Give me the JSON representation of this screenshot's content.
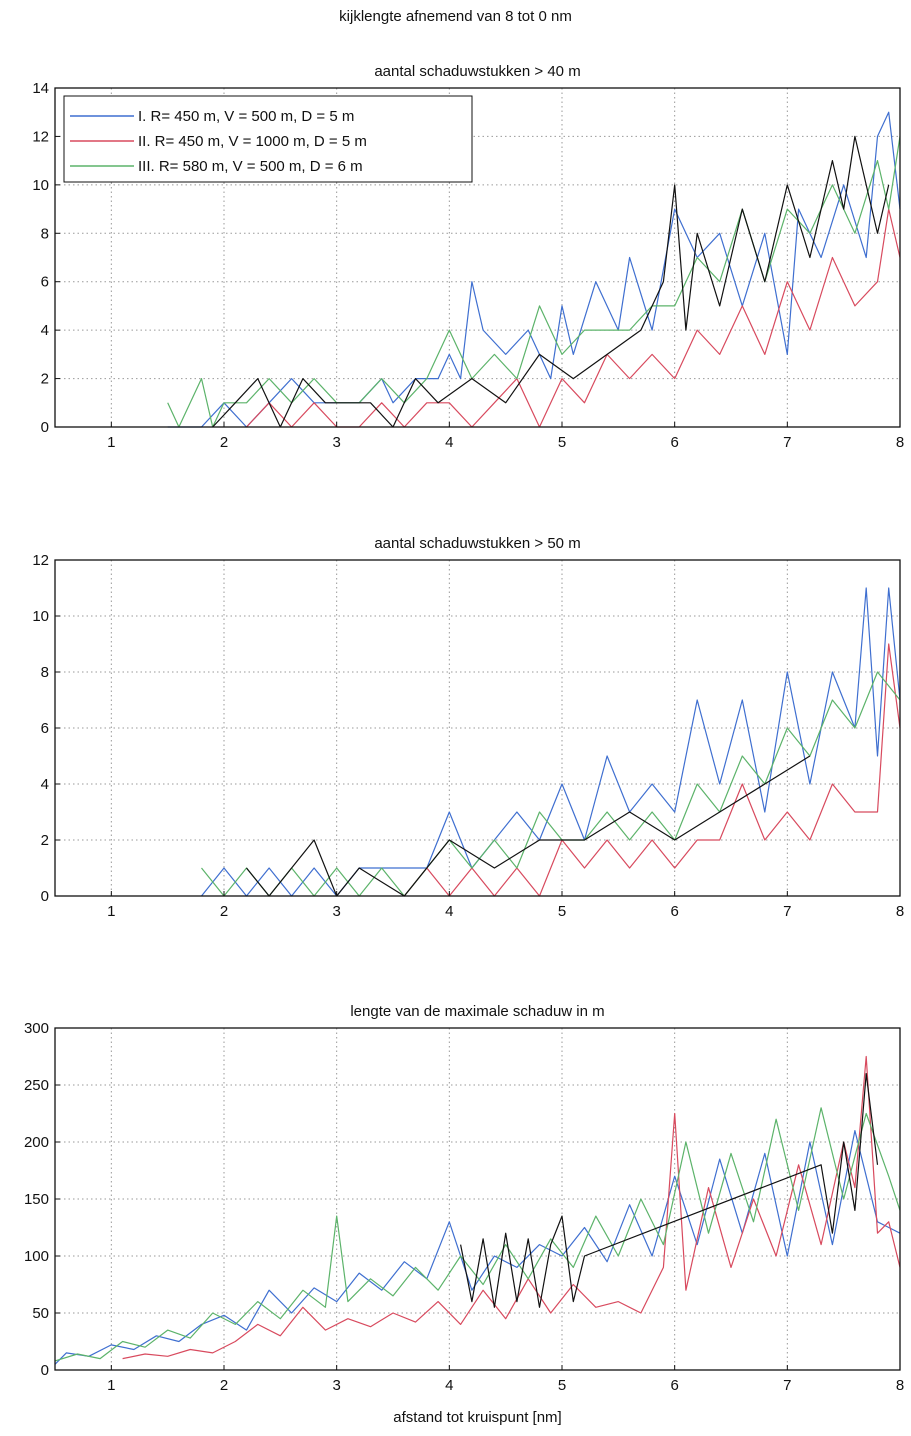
{
  "page_title": "kijklengte afnemend van 8 tot 0 nm",
  "legend": [
    {
      "label": "I.  R= 450 m, V = 500  m, D = 5 m",
      "color": "#3f6fd0"
    },
    {
      "label": "II.  R= 450 m, V = 1000  m, D = 5 m",
      "color": "#d84a5e"
    },
    {
      "label": "III. R= 580 m, V = 500 m, D = 6 m",
      "color": "#5cb36a"
    }
  ],
  "chart_data": [
    {
      "type": "line",
      "title": "aantal schaduwstukken > 40 m",
      "xlabel": "",
      "ylabel": "",
      "xlim": [
        0.5,
        8
      ],
      "ylim": [
        0,
        14
      ],
      "xticks": [
        1,
        2,
        3,
        4,
        5,
        6,
        7,
        8
      ],
      "yticks": [
        0,
        2,
        4,
        6,
        8,
        10,
        12,
        14
      ],
      "grid": true,
      "legend_position": "top-left",
      "series": [
        {
          "color": "#3f6fd0",
          "x": [
            1.5,
            1.8,
            2.0,
            2.2,
            2.4,
            2.6,
            2.8,
            3.0,
            3.2,
            3.4,
            3.5,
            3.7,
            3.9,
            4.0,
            4.1,
            4.2,
            4.3,
            4.5,
            4.7,
            4.9,
            5.0,
            5.1,
            5.3,
            5.5,
            5.6,
            5.8,
            6.0,
            6.2,
            6.4,
            6.6,
            6.8,
            7.0,
            7.1,
            7.3,
            7.5,
            7.7,
            7.8,
            7.9,
            8.0
          ],
          "y": [
            0,
            0,
            1,
            0,
            1,
            2,
            1,
            1,
            1,
            2,
            1,
            2,
            2,
            3,
            2,
            6,
            4,
            3,
            4,
            2,
            5,
            3,
            6,
            4,
            7,
            4,
            9,
            7,
            8,
            5,
            8,
            3,
            9,
            7,
            10,
            7,
            12,
            13,
            9
          ]
        },
        {
          "color": "#d84a5e",
          "x": [
            2.2,
            2.4,
            2.6,
            2.8,
            3.0,
            3.2,
            3.4,
            3.6,
            3.8,
            4.0,
            4.2,
            4.4,
            4.6,
            4.8,
            5.0,
            5.2,
            5.4,
            5.6,
            5.8,
            6.0,
            6.2,
            6.4,
            6.6,
            6.8,
            7.0,
            7.2,
            7.4,
            7.6,
            7.8,
            7.9,
            8.0
          ],
          "y": [
            0,
            1,
            0,
            1,
            0,
            0,
            1,
            0,
            1,
            1,
            0,
            1,
            2,
            0,
            2,
            1,
            3,
            2,
            3,
            2,
            4,
            3,
            5,
            3,
            6,
            4,
            7,
            5,
            6,
            9,
            7
          ]
        },
        {
          "color": "#5cb36a",
          "x": [
            1.5,
            1.6,
            1.8,
            1.9,
            2.0,
            2.2,
            2.4,
            2.6,
            2.8,
            3.0,
            3.2,
            3.4,
            3.6,
            3.8,
            4.0,
            4.2,
            4.4,
            4.6,
            4.8,
            5.0,
            5.2,
            5.4,
            5.6,
            5.8,
            6.0,
            6.2,
            6.4,
            6.6,
            6.8,
            7.0,
            7.2,
            7.4,
            7.6,
            7.8,
            7.9,
            8.0
          ],
          "y": [
            1,
            0,
            2,
            0,
            1,
            1,
            2,
            1,
            2,
            1,
            1,
            2,
            1,
            2,
            4,
            2,
            3,
            2,
            5,
            3,
            4,
            4,
            4,
            5,
            5,
            7,
            6,
            9,
            6,
            9,
            8,
            10,
            8,
            11,
            9,
            12
          ]
        },
        {
          "color": "#111111",
          "x": [
            1.9,
            2.1,
            2.3,
            2.5,
            2.7,
            2.9,
            3.1,
            3.3,
            3.5,
            3.7,
            3.9,
            4.2,
            4.5,
            4.8,
            5.1,
            5.4,
            5.7,
            5.9,
            6.0,
            6.1,
            6.2,
            6.4,
            6.6,
            6.8,
            7.0,
            7.2,
            7.4,
            7.5,
            7.6,
            7.8,
            7.9
          ],
          "y": [
            0,
            1,
            2,
            0,
            2,
            1,
            1,
            1,
            0,
            2,
            1,
            2,
            1,
            3,
            2,
            3,
            4,
            6,
            10,
            4,
            8,
            5,
            9,
            6,
            10,
            7,
            11,
            9,
            12,
            8,
            10
          ]
        }
      ]
    },
    {
      "type": "line",
      "title": "aantal schaduwstukken > 50 m",
      "xlabel": "",
      "ylabel": "",
      "xlim": [
        0.5,
        8
      ],
      "ylim": [
        0,
        12
      ],
      "xticks": [
        1,
        2,
        3,
        4,
        5,
        6,
        7,
        8
      ],
      "yticks": [
        0,
        2,
        4,
        6,
        8,
        10,
        12
      ],
      "grid": true,
      "series": [
        {
          "color": "#3f6fd0",
          "x": [
            1.8,
            2.0,
            2.2,
            2.4,
            2.6,
            2.8,
            3.0,
            3.2,
            3.4,
            3.6,
            3.8,
            4.0,
            4.2,
            4.4,
            4.6,
            4.8,
            5.0,
            5.2,
            5.4,
            5.6,
            5.8,
            6.0,
            6.2,
            6.4,
            6.6,
            6.8,
            7.0,
            7.2,
            7.4,
            7.6,
            7.7,
            7.8,
            7.9,
            8.0
          ],
          "y": [
            0,
            1,
            0,
            1,
            0,
            1,
            0,
            1,
            1,
            1,
            1,
            3,
            1,
            2,
            3,
            2,
            4,
            2,
            5,
            3,
            4,
            3,
            7,
            4,
            7,
            3,
            8,
            4,
            8,
            6,
            11,
            5,
            11,
            7
          ]
        },
        {
          "color": "#d84a5e",
          "x": [
            3.6,
            3.8,
            4.0,
            4.2,
            4.4,
            4.6,
            4.8,
            5.0,
            5.2,
            5.4,
            5.6,
            5.8,
            6.0,
            6.2,
            6.4,
            6.6,
            6.8,
            7.0,
            7.2,
            7.4,
            7.6,
            7.8,
            7.9,
            8.0
          ],
          "y": [
            0,
            1,
            0,
            1,
            0,
            1,
            0,
            2,
            1,
            2,
            1,
            2,
            1,
            2,
            2,
            4,
            2,
            3,
            2,
            4,
            3,
            3,
            9,
            6
          ]
        },
        {
          "color": "#5cb36a",
          "x": [
            1.8,
            2.0,
            2.2,
            2.4,
            2.6,
            2.8,
            3.0,
            3.2,
            3.4,
            3.6,
            3.8,
            4.0,
            4.2,
            4.4,
            4.6,
            4.8,
            5.0,
            5.2,
            5.4,
            5.6,
            5.8,
            6.0,
            6.2,
            6.4,
            6.6,
            6.8,
            7.0,
            7.2,
            7.4,
            7.6,
            7.8,
            8.0
          ],
          "y": [
            1,
            0,
            1,
            0,
            1,
            0,
            1,
            0,
            1,
            0,
            1,
            2,
            1,
            2,
            1,
            3,
            2,
            2,
            3,
            2,
            3,
            2,
            4,
            3,
            5,
            4,
            6,
            5,
            7,
            6,
            8,
            7
          ]
        },
        {
          "color": "#111111",
          "x": [
            2.2,
            2.4,
            2.6,
            2.8,
            3.0,
            3.2,
            3.6,
            4.0,
            4.4,
            4.8,
            5.2,
            5.6,
            6.0,
            6.4,
            6.8,
            7.2
          ],
          "y": [
            1,
            0,
            1,
            2,
            0,
            1,
            0,
            2,
            1,
            2,
            2,
            3,
            2,
            3,
            4,
            5
          ]
        }
      ]
    },
    {
      "type": "line",
      "title": "lengte van de maximale schaduw in m",
      "xlabel": "afstand tot kruispunt [nm]",
      "ylabel": "",
      "xlim": [
        0.5,
        8
      ],
      "ylim": [
        0,
        300
      ],
      "xticks": [
        1,
        2,
        3,
        4,
        5,
        6,
        7,
        8
      ],
      "yticks": [
        0,
        50,
        100,
        150,
        200,
        250,
        300
      ],
      "grid": true,
      "series": [
        {
          "color": "#3f6fd0",
          "x": [
            0.5,
            0.6,
            0.8,
            1.0,
            1.2,
            1.4,
            1.6,
            1.8,
            2.0,
            2.2,
            2.4,
            2.6,
            2.8,
            3.0,
            3.2,
            3.4,
            3.6,
            3.8,
            4.0,
            4.2,
            4.4,
            4.6,
            4.8,
            5.0,
            5.2,
            5.4,
            5.6,
            5.8,
            6.0,
            6.2,
            6.4,
            6.6,
            6.8,
            7.0,
            7.2,
            7.4,
            7.6,
            7.8,
            8.0
          ],
          "y": [
            5,
            15,
            12,
            22,
            18,
            30,
            25,
            40,
            48,
            35,
            70,
            50,
            72,
            60,
            85,
            70,
            95,
            80,
            130,
            70,
            100,
            90,
            110,
            100,
            125,
            95,
            145,
            100,
            170,
            110,
            185,
            120,
            190,
            100,
            200,
            110,
            210,
            130,
            120
          ]
        },
        {
          "color": "#d84a5e",
          "x": [
            1.1,
            1.3,
            1.5,
            1.7,
            1.9,
            2.1,
            2.3,
            2.5,
            2.7,
            2.9,
            3.1,
            3.3,
            3.5,
            3.7,
            3.9,
            4.1,
            4.3,
            4.5,
            4.7,
            4.9,
            5.1,
            5.3,
            5.5,
            5.7,
            5.9,
            6.0,
            6.1,
            6.3,
            6.5,
            6.7,
            6.9,
            7.1,
            7.3,
            7.5,
            7.6,
            7.7,
            7.8,
            7.9,
            8.0
          ],
          "y": [
            10,
            14,
            12,
            18,
            15,
            25,
            40,
            30,
            55,
            35,
            45,
            38,
            50,
            42,
            60,
            40,
            70,
            45,
            80,
            50,
            75,
            55,
            60,
            50,
            90,
            225,
            70,
            160,
            90,
            150,
            100,
            180,
            110,
            200,
            160,
            275,
            120,
            130,
            90
          ]
        },
        {
          "color": "#5cb36a",
          "x": [
            0.5,
            0.7,
            0.9,
            1.1,
            1.3,
            1.5,
            1.7,
            1.9,
            2.1,
            2.3,
            2.5,
            2.7,
            2.9,
            3.0,
            3.1,
            3.3,
            3.5,
            3.7,
            3.9,
            4.1,
            4.3,
            4.5,
            4.7,
            4.9,
            5.1,
            5.3,
            5.5,
            5.7,
            5.9,
            6.1,
            6.3,
            6.5,
            6.7,
            6.9,
            7.1,
            7.3,
            7.5,
            7.7,
            7.9,
            8.0
          ],
          "y": [
            8,
            14,
            10,
            25,
            20,
            35,
            28,
            50,
            40,
            60,
            45,
            70,
            55,
            135,
            60,
            80,
            65,
            90,
            70,
            100,
            75,
            110,
            80,
            115,
            90,
            135,
            100,
            150,
            110,
            200,
            120,
            190,
            130,
            220,
            140,
            230,
            150,
            225,
            170,
            140
          ]
        },
        {
          "color": "#111111",
          "x": [
            4.1,
            4.2,
            4.3,
            4.4,
            4.5,
            4.6,
            4.7,
            4.8,
            4.9,
            5.0,
            5.1,
            5.2,
            7.3,
            7.4,
            7.5,
            7.6,
            7.7,
            7.8
          ],
          "y": [
            110,
            60,
            115,
            55,
            120,
            60,
            115,
            55,
            110,
            135,
            60,
            100,
            180,
            120,
            200,
            140,
            260,
            180
          ]
        }
      ]
    }
  ]
}
